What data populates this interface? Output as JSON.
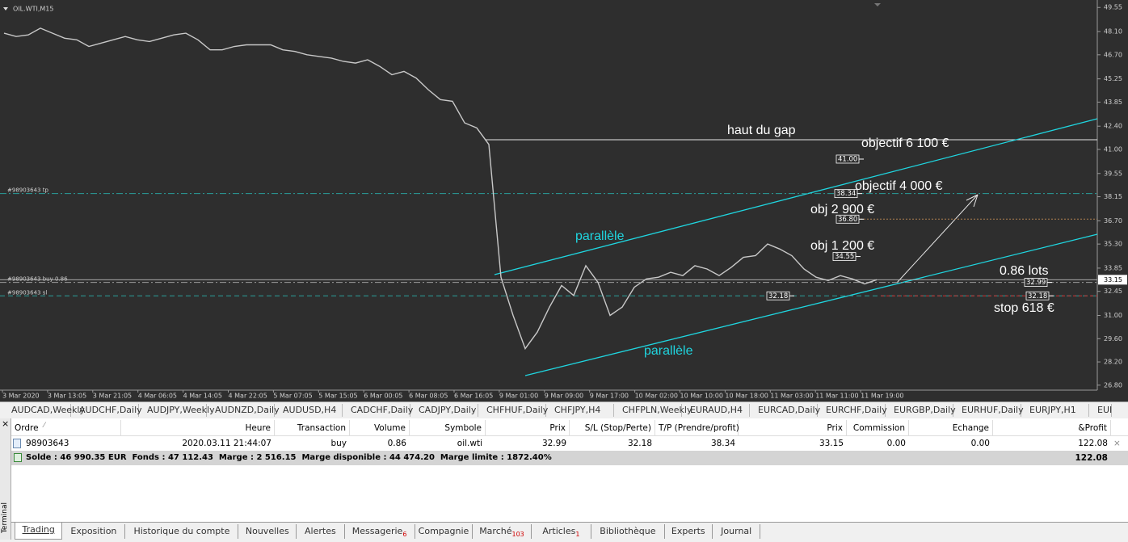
{
  "chart_data": {
    "type": "line",
    "title": "OIL.WTI,M15",
    "color": "#c8c8c8",
    "ylim": [
      26.5,
      50.0
    ],
    "yticks": [
      49.55,
      {
        "value": 48.1,
        "label": "48.10"
      },
      {
        "value": 46.7,
        "label": "46.70"
      },
      45.25,
      43.85,
      {
        "value": 42.4,
        "label": "42.40"
      },
      {
        "value": 41,
        "label": "41.00"
      },
      39.55,
      38.15,
      {
        "value": 36.7,
        "label": "36.70"
      },
      {
        "value": 35.3,
        "label": "35.30"
      },
      33.85,
      32.45,
      {
        "value": 31,
        "label": "31.00"
      },
      {
        "value": 29.6,
        "label": "29.60"
      },
      {
        "value": 28.2,
        "label": "28.20"
      },
      {
        "value": 26.8,
        "label": "26.80"
      }
    ],
    "x_labels": [
      "3 Mar 2020",
      "3 Mar 13:05",
      "3 Mar 21:05",
      "4 Mar 06:05",
      "4 Mar 14:05",
      "4 Mar 22:05",
      "5 Mar 07:05",
      "5 Mar 15:05",
      "6 Mar 00:05",
      "6 Mar 08:05",
      "6 Mar 16:05",
      "9 Mar 01:00",
      "9 Mar 09:00",
      "9 Mar 17:00",
      "10 Mar 02:00",
      "10 Mar 10:00",
      "10 Mar 18:00",
      "11 Mar 03:00",
      "11 Mar 11:00",
      "11 Mar 19:00"
    ],
    "values": [
      48.0,
      47.8,
      47.9,
      48.3,
      48.0,
      47.7,
      47.6,
      47.2,
      47.4,
      47.6,
      47.8,
      47.6,
      47.5,
      47.7,
      47.9,
      48.0,
      47.6,
      47.0,
      47.0,
      47.2,
      47.3,
      47.3,
      47.3,
      47.0,
      46.9,
      46.7,
      46.6,
      46.5,
      46.3,
      46.2,
      46.4,
      46.0,
      45.5,
      45.7,
      45.3,
      44.6,
      44.0,
      43.9,
      42.6,
      42.3,
      41.3,
      33.3,
      31.0,
      29.0,
      30.0,
      31.5,
      32.8,
      32.2,
      34.0,
      33.0,
      31.0,
      31.5,
      32.7,
      33.2,
      33.3,
      33.6,
      33.4,
      34.0,
      33.8,
      33.4,
      33.9,
      34.5,
      34.6,
      35.3,
      35.0,
      34.6,
      33.8,
      33.3,
      33.1,
      33.4,
      33.2,
      32.9,
      33.15
    ],
    "levels": [
      {
        "name": "#98903643 tp",
        "value": 38.34,
        "color": "#2a9d9a"
      },
      {
        "name": "#98903643 buy 0.86",
        "value": 32.99,
        "color": "#9a9a9a"
      },
      {
        "name": "#98903643 sl",
        "value": 32.18,
        "color": "#2a9d9a"
      }
    ],
    "current_price": 33.15,
    "price_boxes": [
      {
        "value": 41,
        "label": "41.00"
      },
      38.34,
      {
        "value": 36.8,
        "label": "36.80"
      },
      34.55,
      32.18,
      32.99,
      32.18
    ],
    "annotations": [
      "haut du gap",
      "objectif 6 100 €",
      "objectif 4 000 €",
      "obj 2 900 €",
      "obj 1 200 €",
      "parallèle",
      "parallèle",
      "0.86 lots",
      "stop 618 €"
    ]
  },
  "symbol_tabs": [
    "AUDCAD,Weekly",
    "AUDCHF,Daily",
    "AUDJPY,Weekly",
    "AUDNZD,Daily",
    "AUDUSD,H4",
    "CADCHF,Daily",
    "CADJPY,Daily",
    "CHFHUF,Daily",
    "CHFJPY,H4",
    "CHFPLN,Weekly",
    "EURAUD,H4",
    "EURCAD,Daily",
    "EURCHF,Daily",
    "EURGBP,Daily",
    "EURHUF,Daily",
    "EURJPY,H1",
    "EUI"
  ],
  "terminal": {
    "label": "Terminal",
    "columns": [
      "Ordre",
      "Heure",
      "Transaction",
      "Volume",
      "Symbole",
      "Prix",
      "S/L (Stop/Perte)",
      "T/P (Prendre/profit)",
      "Prix",
      "Commission",
      "Echange",
      "&Profit"
    ],
    "rows": [
      [
        "98903643",
        "2020.03.11 21:44:07",
        "buy",
        "0.86",
        "oil.wti",
        "32.99",
        "32.18",
        "38.34",
        "33.15",
        "0.00",
        "0.00",
        "122.08"
      ]
    ],
    "summary": {
      "text": "Solde : 46 990.35 EUR  Fonds : 47 112.43  Marge : 2 516.15  Marge disponible : 44 474.20  Marge limite : 1872.40%",
      "profit": "122.08"
    },
    "tabs": [
      {
        "label": "Trading"
      },
      {
        "label": "Exposition"
      },
      {
        "label": "Historique du compte"
      },
      {
        "label": "Nouvelles"
      },
      {
        "label": "Alertes"
      },
      {
        "label": "Messagerie",
        "badge": "6"
      },
      {
        "label": "Compagnie"
      },
      {
        "label": "Marché",
        "badge": "103"
      },
      {
        "label": "Articles",
        "badge": "1"
      },
      {
        "label": "Bibliothèque"
      },
      {
        "label": "Experts"
      },
      {
        "label": "Journal"
      }
    ]
  }
}
